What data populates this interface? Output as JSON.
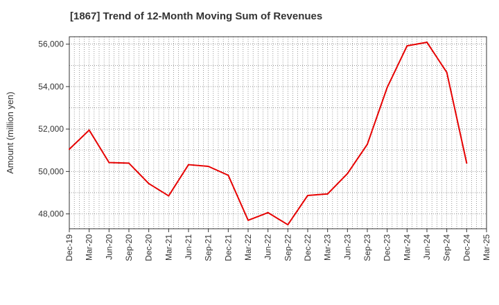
{
  "chart_data": {
    "type": "line",
    "title": "[1867]  Trend of 12-Month Moving Sum of Revenues",
    "xlabel": "",
    "ylabel": "Amount (million yen)",
    "x_ticks": [
      "Dec-19",
      "Mar-20",
      "Jun-20",
      "Sep-20",
      "Dec-20",
      "Mar-21",
      "Jun-21",
      "Sep-21",
      "Dec-21",
      "Mar-22",
      "Jun-22",
      "Sep-22",
      "Dec-22",
      "Mar-23",
      "Jun-23",
      "Sep-23",
      "Dec-23",
      "Mar-24",
      "Jun-24",
      "Sep-24",
      "Dec-24",
      "Mar-25"
    ],
    "y_ticks": [
      48000,
      50000,
      52000,
      54000,
      56000
    ],
    "y_tick_labels": [
      "48,000",
      "50,000",
      "52,000",
      "54,000",
      "56,000"
    ],
    "ylim": [
      47300,
      56350
    ],
    "grid": true,
    "series": [
      {
        "color": "#e60000",
        "x": [
          "Dec-19",
          "Mar-20",
          "Jun-20",
          "Sep-20",
          "Dec-20",
          "Mar-21",
          "Jun-21",
          "Sep-21",
          "Dec-21",
          "Mar-22",
          "Jun-22",
          "Sep-22",
          "Dec-22",
          "Mar-23",
          "Jun-23",
          "Sep-23",
          "Dec-23",
          "Mar-24",
          "Jun-24",
          "Sep-24",
          "Dec-24"
        ],
        "values": [
          51050,
          51950,
          50420,
          50390,
          49430,
          48850,
          50320,
          50240,
          49820,
          47700,
          48060,
          47490,
          48870,
          48940,
          49900,
          51280,
          53960,
          55920,
          56090,
          54670,
          50400
        ]
      }
    ]
  }
}
